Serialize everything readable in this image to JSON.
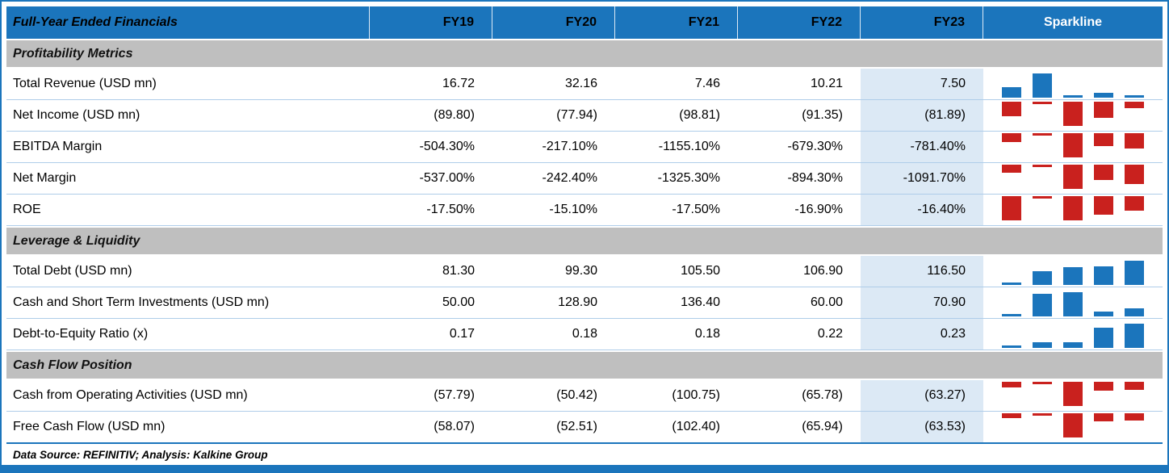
{
  "header": {
    "title": "Full-Year Ended Financials",
    "columns": [
      "FY19",
      "FY20",
      "FY21",
      "FY22",
      "FY23",
      "Sparkline"
    ]
  },
  "sections": [
    {
      "title": "Profitability Metrics",
      "rows": [
        {
          "label": "Total Revenue (USD mn)",
          "values": [
            "16.72",
            "32.16",
            "7.46",
            "10.21",
            "7.50"
          ]
        },
        {
          "label": "Net Income (USD mn)",
          "values": [
            "(89.80)",
            "(77.94)",
            "(98.81)",
            "(91.35)",
            "(81.89)"
          ]
        },
        {
          "label": "EBITDA Margin",
          "values": [
            "-504.30%",
            "-217.10%",
            "-1155.10%",
            "-679.30%",
            "-781.40%"
          ]
        },
        {
          "label": "Net Margin",
          "values": [
            "-537.00%",
            "-242.40%",
            "-1325.30%",
            "-894.30%",
            "-1091.70%"
          ]
        },
        {
          "label": "ROE",
          "values": [
            "-17.50%",
            "-15.10%",
            "-17.50%",
            "-16.90%",
            "-16.40%"
          ]
        }
      ]
    },
    {
      "title": "Leverage & Liquidity",
      "rows": [
        {
          "label": "Total Debt (USD mn)",
          "values": [
            "81.30",
            "99.30",
            "105.50",
            "106.90",
            "116.50"
          ]
        },
        {
          "label": "Cash and Short Term Investments (USD mn)",
          "values": [
            "50.00",
            "128.90",
            "136.40",
            "60.00",
            "70.90"
          ]
        },
        {
          "label": "Debt-to-Equity Ratio (x)",
          "values": [
            "0.17",
            "0.18",
            "0.18",
            "0.22",
            "0.23"
          ]
        }
      ]
    },
    {
      "title": "Cash Flow Position",
      "rows": [
        {
          "label": "Cash from Operating Activities (USD mn)",
          "values": [
            "(57.79)",
            "(50.42)",
            "(100.75)",
            "(65.78)",
            "(63.27)"
          ]
        },
        {
          "label": "Free Cash Flow (USD mn)",
          "values": [
            "(58.07)",
            "(52.51)",
            "(102.40)",
            "(65.94)",
            "(63.53)"
          ]
        }
      ]
    }
  ],
  "footer": {
    "text": "Data Source: REFINITIV; Analysis: Kalkine Group"
  },
  "colors": {
    "header_blue": "#1B75BC",
    "section_gray": "#BFBFBF",
    "fy23_highlight": "#DCE9F5",
    "spark_positive": "#1B75BC",
    "spark_negative": "#C9211E",
    "row_divider": "#AFCDE9"
  },
  "chart_data": {
    "type": "table",
    "title": "Full-Year Ended Financials",
    "categories": [
      "FY19",
      "FY20",
      "FY21",
      "FY22",
      "FY23"
    ],
    "highlighted_column": "FY23",
    "series": [
      {
        "name": "Total Revenue (USD mn)",
        "section": "Profitability Metrics",
        "values": [
          16.72,
          32.16,
          7.46,
          10.21,
          7.5
        ]
      },
      {
        "name": "Net Income (USD mn)",
        "section": "Profitability Metrics",
        "values": [
          -89.8,
          -77.94,
          -98.81,
          -91.35,
          -81.89
        ]
      },
      {
        "name": "EBITDA Margin",
        "section": "Profitability Metrics",
        "values": [
          -504.3,
          -217.1,
          -1155.1,
          -679.3,
          -781.4
        ]
      },
      {
        "name": "Net Margin",
        "section": "Profitability Metrics",
        "values": [
          -537.0,
          -242.4,
          -1325.3,
          -894.3,
          -1091.7
        ]
      },
      {
        "name": "ROE",
        "section": "Profitability Metrics",
        "values": [
          -17.5,
          -15.1,
          -17.5,
          -16.9,
          -16.4
        ]
      },
      {
        "name": "Total Debt (USD mn)",
        "section": "Leverage & Liquidity",
        "values": [
          81.3,
          99.3,
          105.5,
          106.9,
          116.5
        ]
      },
      {
        "name": "Cash and Short Term Investments (USD mn)",
        "section": "Leverage & Liquidity",
        "values": [
          50.0,
          128.9,
          136.4,
          60.0,
          70.9
        ]
      },
      {
        "name": "Debt-to-Equity Ratio (x)",
        "section": "Leverage & Liquidity",
        "values": [
          0.17,
          0.18,
          0.18,
          0.22,
          0.23
        ]
      },
      {
        "name": "Cash from Operating Activities (USD mn)",
        "section": "Cash Flow Position",
        "values": [
          -57.79,
          -50.42,
          -100.75,
          -65.78,
          -63.27
        ]
      },
      {
        "name": "Free Cash Flow (USD mn)",
        "section": "Cash Flow Position",
        "values": [
          -58.07,
          -52.51,
          -102.4,
          -65.94,
          -63.53
        ]
      }
    ],
    "sparkline_note": "Each row has a 5-point column sparkline scaled min-to-max within the row; positive values blue rising from bottom, negative values red hanging from top"
  }
}
